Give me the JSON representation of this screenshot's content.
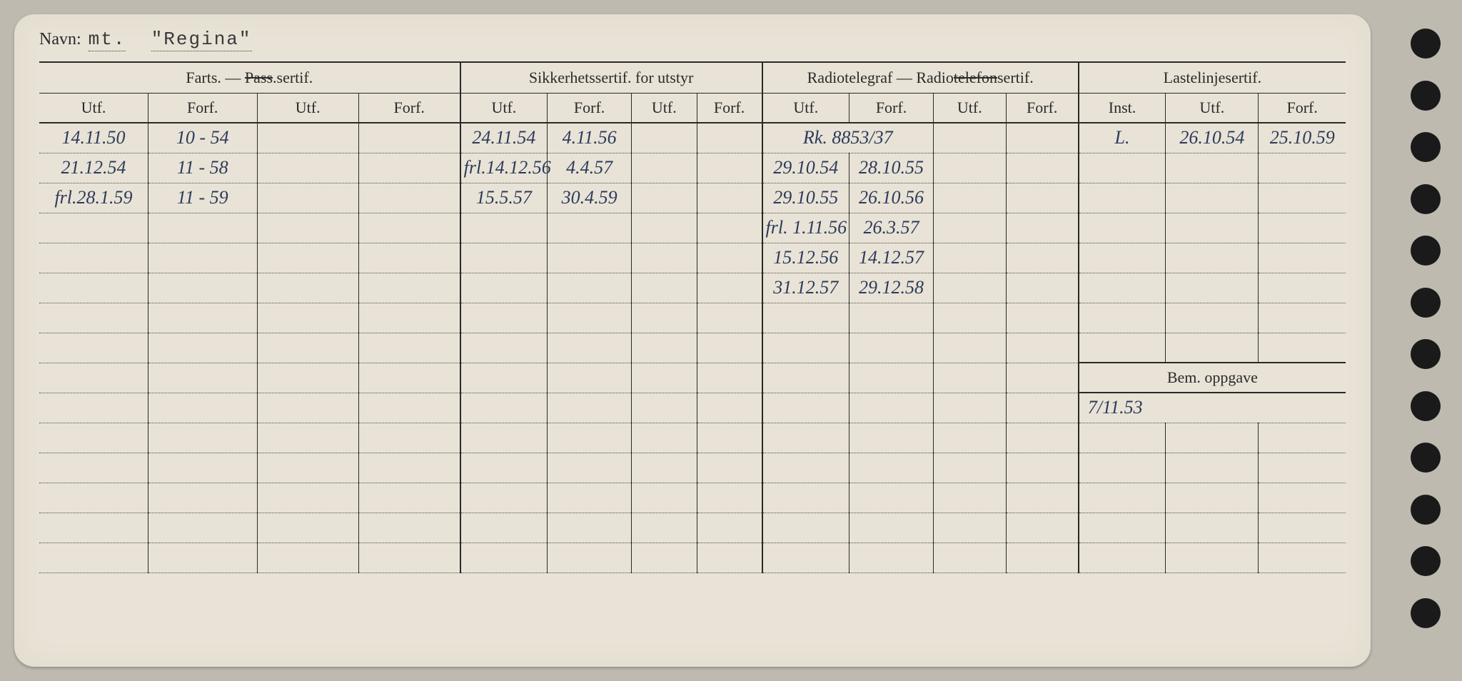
{
  "card": {
    "background": "#e8e3d6",
    "border_radius": 28
  },
  "header": {
    "label": "Navn:",
    "value_prefix": "mt.",
    "value_name": "\"Regina\""
  },
  "sections": {
    "farts": {
      "title": "Farts. — Pass.sertif.",
      "struck_word": "Pass"
    },
    "sikkerhet": {
      "title": "Sikkerhetssertif. for utstyr"
    },
    "radio": {
      "title": "Radiotelegraf — Radiotelefonsertif.",
      "struck_word": "telefon"
    },
    "laste": {
      "title": "Lastelinjesertif."
    }
  },
  "subcols": {
    "utf": "Utf.",
    "forf": "Forf.",
    "inst": "Inst."
  },
  "rows": [
    {
      "f_utf": "14.11.50",
      "f_forf": "10 - 54",
      "s_utf": "24.11.54",
      "s_forf": "4.11.56",
      "r_utf": "Rk. 8853/37",
      "r_forf": "",
      "l_inst": "L.",
      "l_utf": "26.10.54",
      "l_forf": "25.10.59"
    },
    {
      "f_utf": "21.12.54",
      "f_forf": "11 - 58",
      "s_utf": "frl.14.12.56",
      "s_forf": "4.4.57",
      "r_utf": "29.10.54",
      "r_forf": "28.10.55",
      "l_inst": "",
      "l_utf": "",
      "l_forf": ""
    },
    {
      "f_utf": "frl.28.1.59",
      "f_forf": "11 - 59",
      "s_utf": "15.5.57",
      "s_forf": "30.4.59",
      "r_utf": "29.10.55",
      "r_forf": "26.10.56",
      "l_inst": "",
      "l_utf": "",
      "l_forf": ""
    },
    {
      "f_utf": "",
      "f_forf": "",
      "s_utf": "",
      "s_forf": "",
      "r_utf": "frl. 1.11.56",
      "r_forf": "26.3.57",
      "l_inst": "",
      "l_utf": "",
      "l_forf": ""
    },
    {
      "f_utf": "",
      "f_forf": "",
      "s_utf": "",
      "s_forf": "",
      "r_utf": "15.12.56",
      "r_forf": "14.12.57",
      "l_inst": "",
      "l_utf": "",
      "l_forf": ""
    },
    {
      "f_utf": "",
      "f_forf": "",
      "s_utf": "",
      "s_forf": "",
      "r_utf": "31.12.57",
      "r_forf": "29.12.58",
      "l_inst": "",
      "l_utf": "",
      "l_forf": ""
    },
    {
      "f_utf": "",
      "f_forf": "",
      "s_utf": "",
      "s_forf": "",
      "r_utf": "",
      "r_forf": "",
      "l_inst": "",
      "l_utf": "",
      "l_forf": ""
    },
    {
      "f_utf": "",
      "f_forf": "",
      "s_utf": "",
      "s_forf": "",
      "r_utf": "",
      "r_forf": "",
      "l_inst": "",
      "l_utf": "",
      "l_forf": ""
    }
  ],
  "bem": {
    "label": "Bem. oppgave",
    "value": "7/11.53"
  },
  "blank_rows_after_bem": 5,
  "holes": 12,
  "colors": {
    "text_print": "#2a2a2a",
    "text_hand": "#2d3a5a",
    "line": "#2a2a2a",
    "dotted": "#4a4a4a",
    "page_bg": "#bfbab0"
  }
}
